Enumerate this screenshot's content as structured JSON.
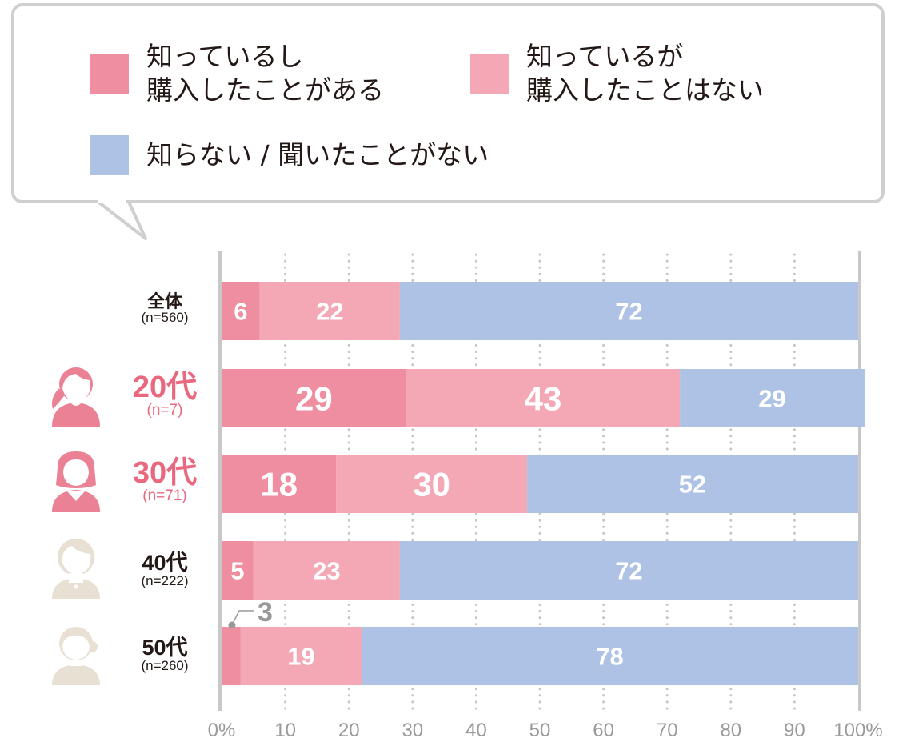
{
  "legend": [
    {
      "label": "知っているし\n購入したことがある",
      "color": "#ee8ea0"
    },
    {
      "label": "知っているが\n購入したことはない",
      "color": "#f4a8b6"
    },
    {
      "label": "知らない / 聞いたことがない",
      "color": "#adc2e4"
    }
  ],
  "chart_data": {
    "type": "bar",
    "orientation": "horizontal",
    "stacked": true,
    "categories": [
      "全体",
      "20代",
      "30代",
      "40代",
      "50代"
    ],
    "sample_sizes": [
      "(n=560)",
      "(n=7)",
      "(n=71)",
      "(n=222)",
      "(n=260)"
    ],
    "series": [
      {
        "name": "知っているし購入したことがある",
        "color": "#ee8ea0",
        "values": [
          6,
          29,
          18,
          5,
          3
        ]
      },
      {
        "name": "知っているが購入したことはない",
        "color": "#f4a8b6",
        "values": [
          22,
          43,
          30,
          23,
          19
        ]
      },
      {
        "name": "知らない / 聞いたことがない",
        "color": "#adc2e4",
        "values": [
          72,
          29,
          52,
          72,
          78
        ]
      }
    ],
    "xlim": [
      0,
      100
    ],
    "xticks": [
      "0%",
      "10",
      "20",
      "30",
      "40",
      "50",
      "60",
      "70",
      "80",
      "90",
      "100%"
    ],
    "grid": "dotted vertical",
    "legend_position": "top",
    "callout": {
      "category": "50代",
      "series": 0,
      "label": "3"
    }
  },
  "rows": [
    {
      "age": "全体",
      "n": "(n=560)",
      "highlight": false,
      "avatar": "none"
    },
    {
      "age": "20代",
      "n": "(n=7)",
      "highlight": true,
      "avatar": "woman-ponytail-icon"
    },
    {
      "age": "30代",
      "n": "(n=71)",
      "highlight": true,
      "avatar": "woman-bob-icon"
    },
    {
      "age": "40代",
      "n": "(n=222)",
      "highlight": false,
      "avatar": "woman-short-hair-icon"
    },
    {
      "age": "50代",
      "n": "(n=260)",
      "highlight": false,
      "avatar": "woman-bun-icon"
    }
  ],
  "colors": {
    "highlight_text": "#e8697f",
    "avatar_pink": "#ea8195",
    "avatar_beige": "#e8e0d2",
    "axis": "#c8c8c8",
    "tick_text": "#9a9a9a",
    "callout": "#999999"
  }
}
